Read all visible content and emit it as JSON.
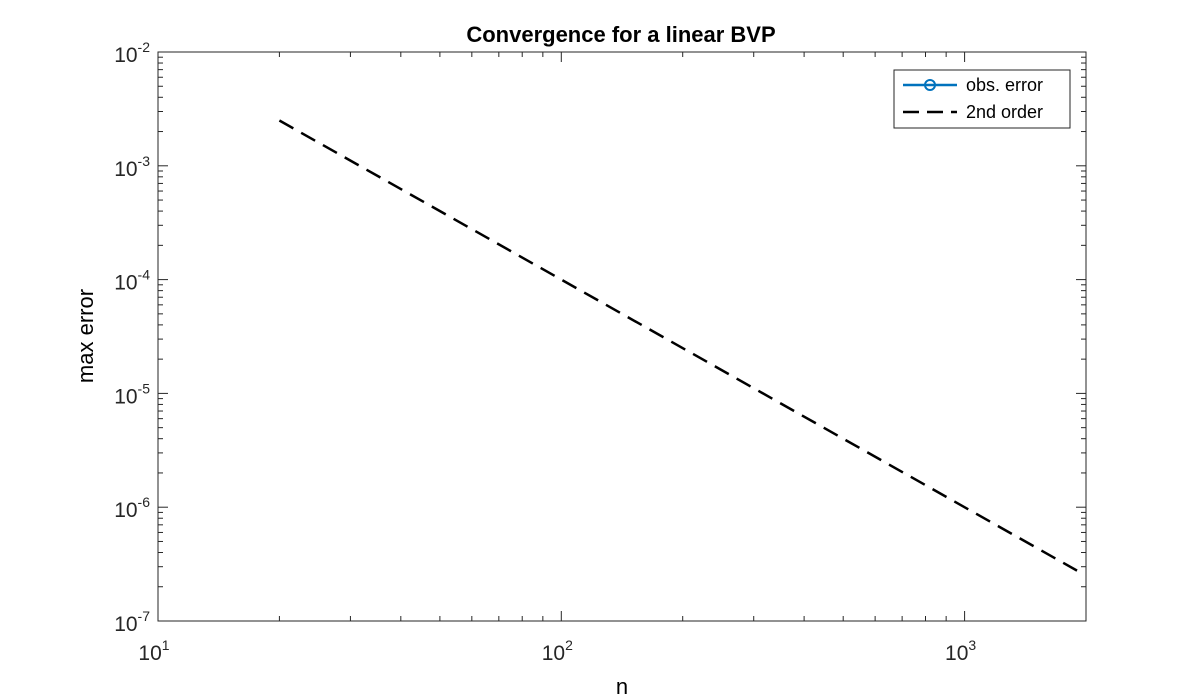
{
  "chart_data": {
    "type": "line",
    "title": "Convergence for a linear BVP",
    "xlabel": "n",
    "ylabel": "max error",
    "xscale": "log",
    "yscale": "log",
    "xlim": [
      10,
      2000
    ],
    "ylim": [
      1e-07,
      0.01
    ],
    "x_ticks": [
      {
        "value": 10,
        "base": "10",
        "exp": "1"
      },
      {
        "value": 100,
        "base": "10",
        "exp": "2"
      },
      {
        "value": 1000,
        "base": "10",
        "exp": "3"
      }
    ],
    "y_ticks": [
      {
        "value": 1e-07,
        "base": "10",
        "exp": "-7"
      },
      {
        "value": 1e-06,
        "base": "10",
        "exp": "-6"
      },
      {
        "value": 1e-05,
        "base": "10",
        "exp": "-5"
      },
      {
        "value": 0.0001,
        "base": "10",
        "exp": "-4"
      },
      {
        "value": 0.001,
        "base": "10",
        "exp": "-3"
      },
      {
        "value": 0.01,
        "base": "10",
        "exp": "-2"
      }
    ],
    "grid": false,
    "legend_position": "top-right",
    "series": [
      {
        "name": "obs. error",
        "style": "solid-circle-markers",
        "color": "#0072BD",
        "x": [],
        "y": []
      },
      {
        "name": "2nd order",
        "style": "dashed",
        "color": "#000000",
        "x": [
          20,
          1900
        ],
        "y": [
          0.0025,
          2.77e-07
        ]
      }
    ]
  }
}
